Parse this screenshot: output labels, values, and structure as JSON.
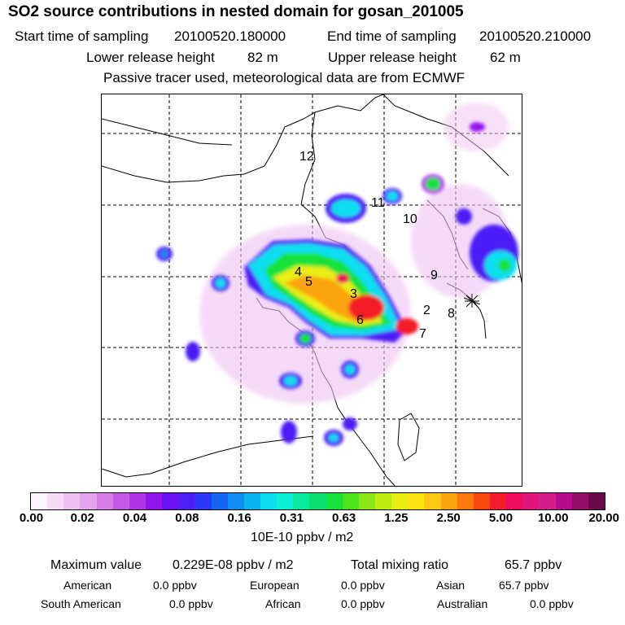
{
  "header": {
    "title": "SO2 source contributions in nested domain for gosan_201005",
    "start_label": "Start time of sampling",
    "start_value": "20100520.180000",
    "end_label": "End time of sampling",
    "end_value": "20100520.210000",
    "lower_label": "Lower release height",
    "lower_value": "82 m",
    "upper_label": "Upper release height",
    "upper_value": "62 m",
    "note": "Passive tracer used, meteorological data are from ECMWF"
  },
  "map": {
    "region_labels": [
      {
        "id": "12",
        "text": "12"
      },
      {
        "id": "11",
        "text": "11"
      },
      {
        "id": "10",
        "text": "10"
      },
      {
        "id": "9",
        "text": "9"
      },
      {
        "id": "4",
        "text": "4"
      },
      {
        "id": "5",
        "text": "5"
      },
      {
        "id": "3",
        "text": "3"
      },
      {
        "id": "2",
        "text": "2"
      },
      {
        "id": "8",
        "text": "8"
      },
      {
        "id": "6",
        "text": "6"
      },
      {
        "id": "7",
        "text": "7"
      }
    ],
    "receptor_marker": "receptor-star"
  },
  "colorbar": {
    "colors": [
      "#fdf5fd",
      "#f7dcf7",
      "#efc1f2",
      "#e6a3ee",
      "#d77ce8",
      "#c459e4",
      "#b035e6",
      "#9414ec",
      "#6a10f2",
      "#4b1ff6",
      "#2b39f6",
      "#1665f2",
      "#0d8ef0",
      "#0bb3f0",
      "#0ddef0",
      "#0ef0d4",
      "#0ae8a2",
      "#0ae070",
      "#16e23a",
      "#50e21a",
      "#8ae614",
      "#c0ec12",
      "#e8ee12",
      "#fce414",
      "#fcc814",
      "#fca40e",
      "#fc7a0c",
      "#f8480e",
      "#f41c26",
      "#ec0c5c",
      "#e0147e",
      "#d41c8c",
      "#b40c8c",
      "#941068",
      "#6a0a4a"
    ],
    "ticks": [
      "0.00",
      "0.02",
      "0.04",
      "0.08",
      "0.16",
      "0.31",
      "0.63",
      "1.25",
      "2.50",
      "5.00",
      "10.00",
      "20.00"
    ],
    "units": "10E-10 ppbv / m2"
  },
  "summary": {
    "max_label": "Maximum value",
    "max_value": "0.229E-08 ppbv / m2",
    "total_label": "Total mixing ratio",
    "total_value": "65.7 ppbv",
    "regions": [
      {
        "label": "American",
        "value": "0.0 ppbv"
      },
      {
        "label": "European",
        "value": "0.0 ppbv"
      },
      {
        "label": "Asian",
        "value": "65.7 ppbv"
      },
      {
        "label": "South American",
        "value": "0.0 ppbv"
      },
      {
        "label": "African",
        "value": "0.0 ppbv"
      },
      {
        "label": "Australian",
        "value": "0.0 ppbv"
      }
    ]
  }
}
